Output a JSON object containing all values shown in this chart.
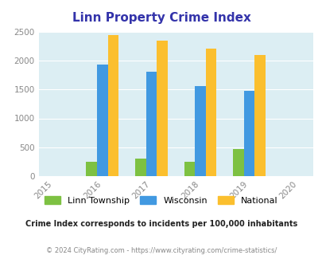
{
  "title": "Linn Property Crime Index",
  "title_color": "#3333aa",
  "years": [
    2015,
    2016,
    2017,
    2018,
    2019,
    2020
  ],
  "data_years": [
    2016,
    2017,
    2018,
    2019
  ],
  "linn_township": [
    250,
    305,
    252,
    465
  ],
  "wisconsin": [
    1930,
    1800,
    1555,
    1480
  ],
  "national": [
    2440,
    2345,
    2205,
    2090
  ],
  "bar_colors": {
    "linn": "#7dc142",
    "wisconsin": "#4199e1",
    "national": "#fbbf2e"
  },
  "ylim": [
    0,
    2500
  ],
  "yticks": [
    0,
    500,
    1000,
    1500,
    2000,
    2500
  ],
  "background_color": "#dceef3",
  "legend_labels": [
    "Linn Township",
    "Wisconsin",
    "National"
  ],
  "footnote1": "Crime Index corresponds to incidents per 100,000 inhabitants",
  "footnote2": "© 2024 CityRating.com - https://www.cityrating.com/crime-statistics/",
  "footnote1_color": "#222222",
  "footnote2_color": "#888888",
  "bar_width": 0.22
}
